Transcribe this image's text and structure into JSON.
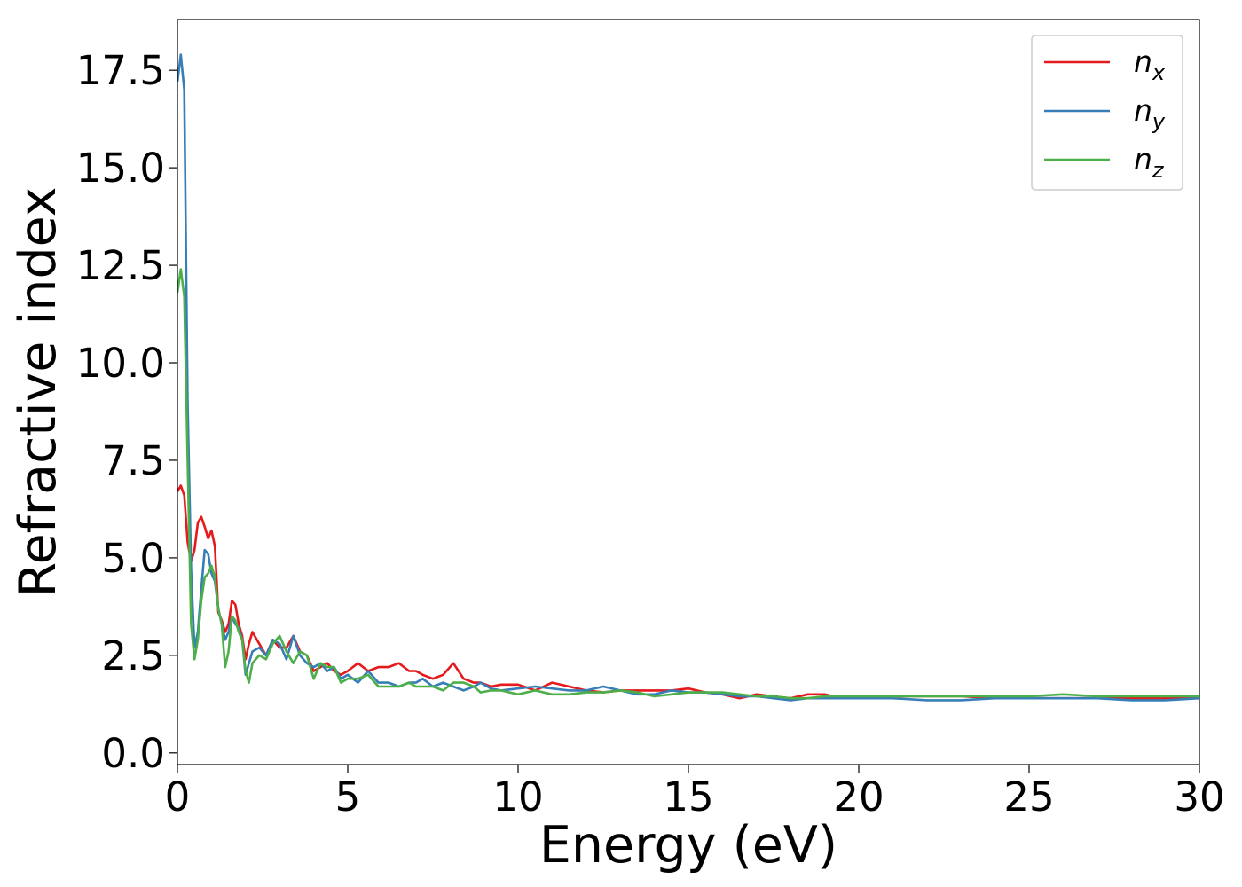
{
  "chart_data": {
    "type": "line",
    "xlabel": "Energy (eV)",
    "ylabel": "Refractive index",
    "xlim": [
      0,
      30
    ],
    "ylim": [
      -0.3,
      18.8
    ],
    "xticks": [
      "0",
      "5",
      "10",
      "15",
      "20",
      "25",
      "30"
    ],
    "yticks": [
      "0.0",
      "2.5",
      "5.0",
      "7.5",
      "10.0",
      "12.5",
      "15.0",
      "17.5"
    ],
    "grid": false,
    "legend_position": "top-right",
    "series": [
      {
        "name": "n_x",
        "name_base": "n",
        "name_sub": "x",
        "color": "#e41a1c",
        "x": [
          0,
          0.1,
          0.2,
          0.3,
          0.4,
          0.5,
          0.6,
          0.7,
          0.8,
          0.9,
          1.0,
          1.1,
          1.2,
          1.3,
          1.4,
          1.5,
          1.6,
          1.7,
          1.8,
          1.9,
          2.0,
          2.1,
          2.2,
          2.4,
          2.6,
          2.8,
          3.0,
          3.2,
          3.4,
          3.6,
          3.8,
          4.0,
          4.2,
          4.4,
          4.6,
          4.8,
          5.0,
          5.3,
          5.6,
          5.9,
          6.2,
          6.5,
          6.8,
          7.0,
          7.2,
          7.5,
          7.8,
          8.1,
          8.4,
          8.7,
          8.9,
          9.2,
          9.5,
          10.0,
          10.5,
          11.0,
          11.5,
          12.0,
          12.5,
          13.0,
          13.5,
          14.0,
          14.5,
          15.0,
          15.5,
          16.0,
          16.5,
          17.0,
          17.5,
          18.0,
          18.5,
          19.0,
          19.5,
          20.0,
          21.0,
          22.0,
          23.0,
          24.0,
          25.0,
          26.0,
          27.0,
          28.0,
          29.0,
          30.0
        ],
        "y": [
          6.7,
          6.85,
          6.6,
          5.4,
          4.9,
          5.2,
          5.9,
          6.05,
          5.8,
          5.5,
          5.7,
          5.3,
          3.6,
          3.4,
          3.1,
          3.3,
          3.9,
          3.8,
          3.3,
          3.0,
          2.4,
          2.8,
          3.1,
          2.8,
          2.5,
          2.9,
          2.7,
          2.7,
          3.0,
          2.6,
          2.5,
          2.1,
          2.2,
          2.3,
          2.1,
          2.0,
          2.1,
          2.3,
          2.1,
          2.2,
          2.2,
          2.3,
          2.1,
          2.1,
          2.0,
          1.9,
          2.0,
          2.3,
          1.9,
          1.8,
          1.8,
          1.7,
          1.75,
          1.75,
          1.6,
          1.8,
          1.7,
          1.6,
          1.55,
          1.6,
          1.6,
          1.6,
          1.6,
          1.65,
          1.55,
          1.5,
          1.4,
          1.5,
          1.45,
          1.4,
          1.5,
          1.5,
          1.4,
          1.45,
          1.45,
          1.45,
          1.45,
          1.4,
          1.4,
          1.4,
          1.4,
          1.4,
          1.4,
          1.4
        ]
      },
      {
        "name": "n_y",
        "name_base": "n",
        "name_sub": "y",
        "color": "#377eb8",
        "x": [
          0,
          0.1,
          0.2,
          0.3,
          0.4,
          0.5,
          0.6,
          0.7,
          0.8,
          0.9,
          1.0,
          1.1,
          1.2,
          1.3,
          1.4,
          1.5,
          1.6,
          1.7,
          1.8,
          1.9,
          2.0,
          2.1,
          2.2,
          2.4,
          2.6,
          2.8,
          3.0,
          3.2,
          3.4,
          3.6,
          3.8,
          4.0,
          4.2,
          4.4,
          4.6,
          4.8,
          5.0,
          5.3,
          5.6,
          5.9,
          6.2,
          6.5,
          6.8,
          7.0,
          7.2,
          7.5,
          7.8,
          8.1,
          8.4,
          8.7,
          8.9,
          9.2,
          9.5,
          10.0,
          10.5,
          11.0,
          11.5,
          12.0,
          12.5,
          13.0,
          13.5,
          14.0,
          14.5,
          15.0,
          15.5,
          16.0,
          16.5,
          17.0,
          17.5,
          18.0,
          18.5,
          19.0,
          19.5,
          20.0,
          21.0,
          22.0,
          23.0,
          24.0,
          25.0,
          26.0,
          27.0,
          28.0,
          29.0,
          30.0
        ],
        "y": [
          17.2,
          17.9,
          17.0,
          9.0,
          4.7,
          2.7,
          3.1,
          4.2,
          5.2,
          5.1,
          4.6,
          4.4,
          3.7,
          3.3,
          2.9,
          3.1,
          3.5,
          3.3,
          3.2,
          2.9,
          2.0,
          2.3,
          2.6,
          2.7,
          2.5,
          2.9,
          2.8,
          2.4,
          3.0,
          2.5,
          2.3,
          2.2,
          2.3,
          2.1,
          2.2,
          1.9,
          2.0,
          1.8,
          2.1,
          1.8,
          1.8,
          1.7,
          1.8,
          1.8,
          1.9,
          1.7,
          1.8,
          1.7,
          1.6,
          1.7,
          1.8,
          1.65,
          1.6,
          1.65,
          1.7,
          1.65,
          1.6,
          1.6,
          1.7,
          1.6,
          1.5,
          1.5,
          1.6,
          1.55,
          1.55,
          1.5,
          1.45,
          1.45,
          1.4,
          1.35,
          1.4,
          1.4,
          1.4,
          1.4,
          1.4,
          1.35,
          1.35,
          1.4,
          1.4,
          1.4,
          1.4,
          1.35,
          1.35,
          1.4
        ]
      },
      {
        "name": "n_z",
        "name_base": "n",
        "name_sub": "z",
        "color": "#4daf4a",
        "x": [
          0,
          0.1,
          0.2,
          0.3,
          0.4,
          0.5,
          0.6,
          0.7,
          0.8,
          0.9,
          1.0,
          1.1,
          1.2,
          1.3,
          1.4,
          1.5,
          1.6,
          1.7,
          1.8,
          1.9,
          2.0,
          2.1,
          2.2,
          2.4,
          2.6,
          2.8,
          3.0,
          3.2,
          3.4,
          3.6,
          3.8,
          4.0,
          4.2,
          4.4,
          4.6,
          4.8,
          5.0,
          5.3,
          5.6,
          5.9,
          6.2,
          6.5,
          6.8,
          7.0,
          7.2,
          7.5,
          7.8,
          8.1,
          8.4,
          8.7,
          8.9,
          9.2,
          9.5,
          10.0,
          10.5,
          11.0,
          11.5,
          12.0,
          12.5,
          13.0,
          13.5,
          14.0,
          14.5,
          15.0,
          15.5,
          16.0,
          16.5,
          17.0,
          17.5,
          18.0,
          18.5,
          19.0,
          19.5,
          20.0,
          21.0,
          22.0,
          23.0,
          24.0,
          25.0,
          26.0,
          27.0,
          28.0,
          29.0,
          30.0
        ],
        "y": [
          11.8,
          12.4,
          11.7,
          7.5,
          3.3,
          2.4,
          2.9,
          3.9,
          4.5,
          4.6,
          4.8,
          4.5,
          3.7,
          3.3,
          2.2,
          2.6,
          3.5,
          3.4,
          3.1,
          2.9,
          2.1,
          1.8,
          2.3,
          2.5,
          2.4,
          2.8,
          3.0,
          2.6,
          2.3,
          2.6,
          2.5,
          1.9,
          2.3,
          2.2,
          2.2,
          1.8,
          1.9,
          1.9,
          2.0,
          1.7,
          1.7,
          1.7,
          1.8,
          1.7,
          1.7,
          1.7,
          1.6,
          1.8,
          1.8,
          1.7,
          1.55,
          1.6,
          1.6,
          1.5,
          1.6,
          1.5,
          1.5,
          1.55,
          1.55,
          1.6,
          1.55,
          1.45,
          1.5,
          1.55,
          1.55,
          1.55,
          1.5,
          1.45,
          1.45,
          1.4,
          1.4,
          1.45,
          1.45,
          1.45,
          1.45,
          1.45,
          1.45,
          1.45,
          1.45,
          1.5,
          1.45,
          1.45,
          1.45,
          1.45
        ]
      }
    ]
  }
}
